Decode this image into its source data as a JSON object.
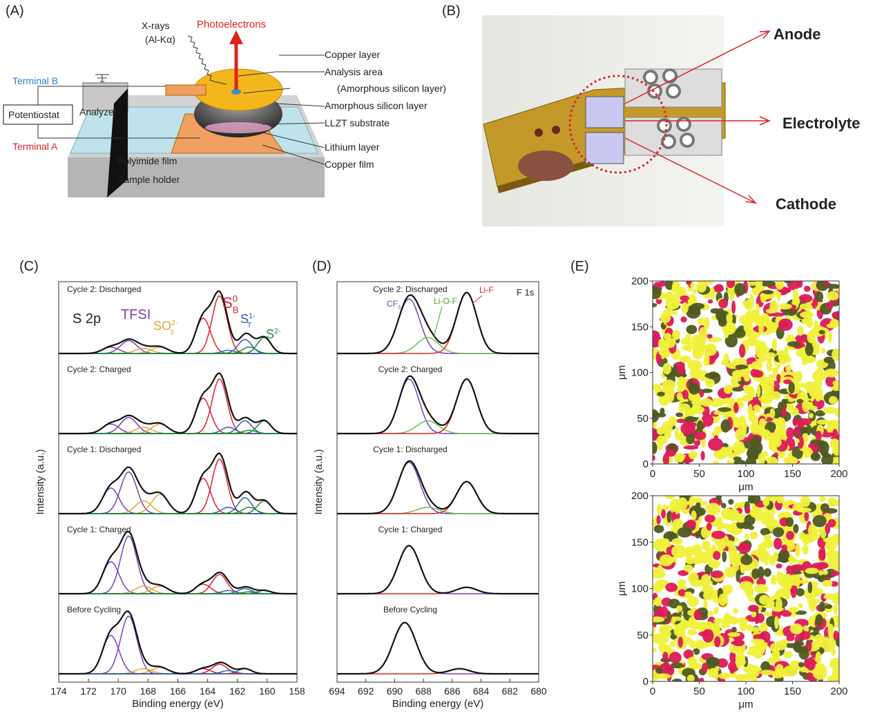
{
  "panels": {
    "a": {
      "label": "(A)",
      "xrays": "X-rays",
      "xray_source": "(Al-Kα)",
      "photoelectrons": "Photoelectrons",
      "copper_layer": "Copper layer",
      "analysis_area": "Analysis area",
      "analysis_area_note": "(Amorphous silicon layer)",
      "amorphous_silicon": "Amorphous silicon layer",
      "llzt": "LLZT substrate",
      "lithium": "Lithium layer",
      "copper_film": "Copper film",
      "terminal_b": "Terminal B",
      "terminal_a": "Terminal A",
      "potentiostat": "Potentiostat",
      "analyzer": "Analyzer",
      "polyimide": "Polyimide film",
      "holder": "Sample holder"
    },
    "b": {
      "label": "(B)",
      "anode": "Anode",
      "electrolyte": "Electrolyte",
      "cathode": "Cathode"
    },
    "c": {
      "label": "(C)",
      "xlabel": "Binding energy (eV)",
      "ylabel": "Intensity (a.u.)",
      "xlim": [
        174,
        158
      ],
      "xticks": [
        174,
        172,
        170,
        168,
        166,
        164,
        162,
        160,
        158
      ],
      "annotations": {
        "region": "S 2p",
        "tfsi": "TFSI",
        "so3": {
          "base": "SO",
          "sub": "3",
          "sup": "2-"
        },
        "sb": {
          "base": "S",
          "sub": "B",
          "sup": "0"
        },
        "st": {
          "base": "S",
          "sub": "T",
          "sup": "1-"
        },
        "s2": {
          "base": "S",
          "sup": "2-"
        }
      },
      "spectra": [
        {
          "name": "Cycle 2: Discharged",
          "components": [
            {
              "center": 170.5,
              "height": 0.1,
              "width": 0.55,
              "color": "#7a3fb0"
            },
            {
              "center": 169.3,
              "height": 0.2,
              "width": 0.55,
              "color": "#7a3fb0"
            },
            {
              "center": 168.3,
              "height": 0.08,
              "width": 0.55,
              "color": "#e8a33a"
            },
            {
              "center": 167.2,
              "height": 0.1,
              "width": 0.55,
              "color": "#e8a33a"
            },
            {
              "center": 164.3,
              "height": 0.55,
              "width": 0.5,
              "color": "#d9232d"
            },
            {
              "center": 163.2,
              "height": 0.9,
              "width": 0.5,
              "color": "#d9232d"
            },
            {
              "center": 162.6,
              "height": 0.05,
              "width": 0.45,
              "color": "#2a64b0"
            },
            {
              "center": 161.5,
              "height": 0.22,
              "width": 0.45,
              "color": "#2a64b0"
            },
            {
              "center": 161.2,
              "height": 0.1,
              "width": 0.45,
              "color": "#1e8a3a"
            },
            {
              "center": 160.2,
              "height": 0.25,
              "width": 0.45,
              "color": "#1e8a3a"
            }
          ]
        },
        {
          "name": "Cycle 2: Charged",
          "components": [
            {
              "center": 170.5,
              "height": 0.15,
              "width": 0.55,
              "color": "#7a3fb0"
            },
            {
              "center": 169.3,
              "height": 0.25,
              "width": 0.55,
              "color": "#7a3fb0"
            },
            {
              "center": 168.3,
              "height": 0.1,
              "width": 0.55,
              "color": "#e8a33a"
            },
            {
              "center": 167.2,
              "height": 0.15,
              "width": 0.55,
              "color": "#e8a33a"
            },
            {
              "center": 164.3,
              "height": 0.55,
              "width": 0.5,
              "color": "#d9232d"
            },
            {
              "center": 163.2,
              "height": 0.85,
              "width": 0.5,
              "color": "#d9232d"
            },
            {
              "center": 162.6,
              "height": 0.1,
              "width": 0.45,
              "color": "#2a64b0"
            },
            {
              "center": 161.5,
              "height": 0.2,
              "width": 0.45,
              "color": "#2a64b0"
            },
            {
              "center": 161.2,
              "height": 0.05,
              "width": 0.45,
              "color": "#1e8a3a"
            },
            {
              "center": 160.2,
              "height": 0.2,
              "width": 0.45,
              "color": "#1e8a3a"
            }
          ]
        },
        {
          "name": "Cycle 1: Discharged",
          "components": [
            {
              "center": 170.5,
              "height": 0.4,
              "width": 0.55,
              "color": "#7a3fb0"
            },
            {
              "center": 169.3,
              "height": 0.65,
              "width": 0.55,
              "color": "#7a3fb0"
            },
            {
              "center": 168.3,
              "height": 0.2,
              "width": 0.55,
              "color": "#e8a33a"
            },
            {
              "center": 167.2,
              "height": 0.3,
              "width": 0.55,
              "color": "#e8a33a"
            },
            {
              "center": 164.3,
              "height": 0.55,
              "width": 0.5,
              "color": "#d9232d"
            },
            {
              "center": 163.2,
              "height": 0.85,
              "width": 0.5,
              "color": "#d9232d"
            },
            {
              "center": 162.6,
              "height": 0.1,
              "width": 0.45,
              "color": "#2a64b0"
            },
            {
              "center": 161.5,
              "height": 0.25,
              "width": 0.45,
              "color": "#2a64b0"
            },
            {
              "center": 161.2,
              "height": 0.1,
              "width": 0.45,
              "color": "#1e8a3a"
            },
            {
              "center": 160.2,
              "height": 0.2,
              "width": 0.45,
              "color": "#1e8a3a"
            }
          ]
        },
        {
          "name": "Cycle 1: Charged",
          "components": [
            {
              "center": 170.5,
              "height": 0.5,
              "width": 0.55,
              "color": "#7a3fb0"
            },
            {
              "center": 169.3,
              "height": 0.9,
              "width": 0.55,
              "color": "#7a3fb0"
            },
            {
              "center": 168.3,
              "height": 0.12,
              "width": 0.55,
              "color": "#e8a33a"
            },
            {
              "center": 167.2,
              "height": 0.12,
              "width": 0.55,
              "color": "#e8a33a"
            },
            {
              "center": 164.3,
              "height": 0.15,
              "width": 0.5,
              "color": "#d9232d"
            },
            {
              "center": 163.2,
              "height": 0.3,
              "width": 0.5,
              "color": "#d9232d"
            },
            {
              "center": 162.6,
              "height": 0.05,
              "width": 0.45,
              "color": "#2a64b0"
            },
            {
              "center": 161.5,
              "height": 0.08,
              "width": 0.45,
              "color": "#2a64b0"
            },
            {
              "center": 161.2,
              "height": 0.03,
              "width": 0.45,
              "color": "#1e8a3a"
            },
            {
              "center": 160.2,
              "height": 0.05,
              "width": 0.45,
              "color": "#1e8a3a"
            }
          ]
        },
        {
          "name": "Before Cycling",
          "components": [
            {
              "center": 170.5,
              "height": 0.6,
              "width": 0.55,
              "color": "#7a3fb0"
            },
            {
              "center": 169.3,
              "height": 0.9,
              "width": 0.55,
              "color": "#7a3fb0"
            },
            {
              "center": 168.3,
              "height": 0.08,
              "width": 0.55,
              "color": "#e8a33a"
            },
            {
              "center": 167.2,
              "height": 0.1,
              "width": 0.55,
              "color": "#e8a33a"
            },
            {
              "center": 164.3,
              "height": 0.08,
              "width": 0.5,
              "color": "#d9232d"
            },
            {
              "center": 163.2,
              "height": 0.15,
              "width": 0.5,
              "color": "#d9232d"
            },
            {
              "center": 162.6,
              "height": 0.05,
              "width": 0.45,
              "color": "#2a64b0"
            },
            {
              "center": 161.5,
              "height": 0.08,
              "width": 0.45,
              "color": "#2a64b0"
            }
          ]
        }
      ]
    },
    "d": {
      "label": "(D)",
      "xlabel": "Binding energy (eV)",
      "ylabel": "Intensity (a.u.)",
      "xlim": [
        694,
        680
      ],
      "xticks": [
        694,
        692,
        690,
        688,
        686,
        684,
        682,
        680
      ],
      "annotations": {
        "region": "F 1s",
        "cf3": {
          "base": "CF",
          "sub": "3"
        },
        "liof": "Li-O-F",
        "lif": "Li-F"
      },
      "spectra": [
        {
          "name": "Cycle 2: Discharged",
          "components": [
            {
              "center": 689,
              "height": 0.85,
              "width": 0.75,
              "color": "#7a3fb0"
            },
            {
              "center": 687.7,
              "height": 0.25,
              "width": 0.75,
              "color": "#6cc04a"
            },
            {
              "center": 685,
              "height": 0.95,
              "width": 0.7,
              "color": "#d9232d"
            }
          ]
        },
        {
          "name": "Cycle 2: Charged",
          "components": [
            {
              "center": 689,
              "height": 0.85,
              "width": 0.7,
              "color": "#7a3fb0"
            },
            {
              "center": 687.7,
              "height": 0.2,
              "width": 0.75,
              "color": "#6cc04a"
            },
            {
              "center": 685,
              "height": 0.85,
              "width": 0.7,
              "color": "#d9232d"
            }
          ]
        },
        {
          "name": "Cycle 1: Discharged",
          "components": [
            {
              "center": 689,
              "height": 0.8,
              "width": 0.75,
              "color": "#7a3fb0"
            },
            {
              "center": 687.7,
              "height": 0.1,
              "width": 0.75,
              "color": "#6cc04a"
            },
            {
              "center": 685,
              "height": 0.5,
              "width": 0.7,
              "color": "#d9232d"
            }
          ]
        },
        {
          "name": "Cycle 1: Charged",
          "components": [
            {
              "center": 689,
              "height": 0.75,
              "width": 0.75,
              "color": "#7a3fb0"
            },
            {
              "center": 685,
              "height": 0.1,
              "width": 0.7,
              "color": "#d9232d"
            }
          ]
        },
        {
          "name": "Before Cycling",
          "components": [
            {
              "center": 689.3,
              "height": 0.8,
              "width": 0.8,
              "color": "#7a3fb0"
            },
            {
              "center": 685.5,
              "height": 0.08,
              "width": 0.7,
              "color": "#d9232d"
            }
          ]
        }
      ]
    },
    "e": {
      "label": "(E)",
      "xlabel": "μm",
      "ylabel": "μm",
      "xlim": [
        0,
        200
      ],
      "ylim": [
        0,
        200
      ],
      "xticks": [
        0,
        50,
        100,
        150,
        200
      ],
      "yticks": [
        0,
        50,
        100,
        150,
        200
      ]
    }
  }
}
